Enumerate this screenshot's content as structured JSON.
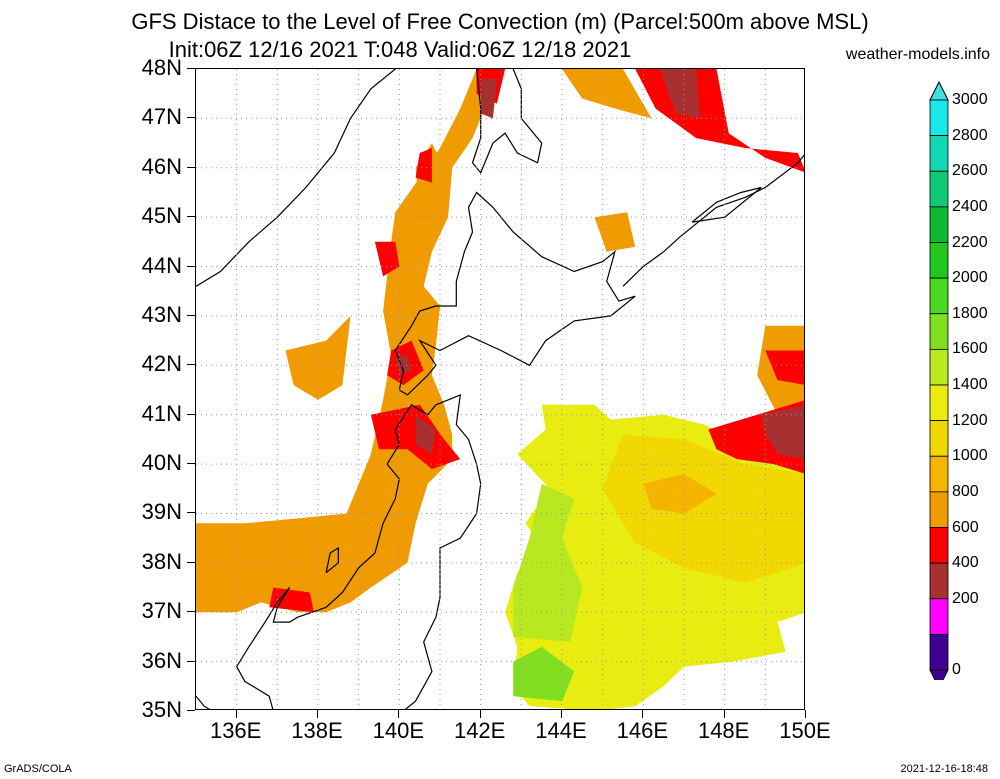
{
  "title": {
    "line1": "GFS Distace to the Level of Free Convection (m) (Parcel:500m above MSL)",
    "line2": "Init:06Z 12/16 2021 T:048 Valid:06Z 12/18 2021"
  },
  "site_credit": "weather-models.info",
  "footer": {
    "left": "GrADS/COLA",
    "right": "2021-12-16-18:48"
  },
  "map": {
    "lat_labels": [
      "48N",
      "47N",
      "46N",
      "45N",
      "44N",
      "43N",
      "42N",
      "41N",
      "40N",
      "39N",
      "38N",
      "37N",
      "36N",
      "35N"
    ],
    "lon_labels": [
      "136E",
      "138E",
      "140E",
      "142E",
      "144E",
      "146E",
      "148E",
      "150E"
    ],
    "lat_range": [
      35,
      48
    ],
    "lon_range": [
      135,
      150
    ],
    "grid_lines": "dotted"
  },
  "colorbar": {
    "levels": [
      "3000",
      "2800",
      "2600",
      "2400",
      "2200",
      "2000",
      "1800",
      "1600",
      "1400",
      "1200",
      "1000",
      "800",
      "600",
      "400",
      "200",
      "0"
    ],
    "colors": [
      "#18e8e8",
      "#10d8b0",
      "#10c878",
      "#10b830",
      "#20c820",
      "#48d820",
      "#80e020",
      "#b8e820",
      "#e8ec10",
      "#f0d800",
      "#f4b400",
      "#f09c00",
      "#ff0000",
      "#a83030",
      "#ff00ff",
      "#400090"
    ],
    "top_arrow_color": "#40e0e0",
    "bottom_arrow_color": "#400090"
  },
  "legend_colors": {
    "lt200": "#ff00ff",
    "200_400": "#a83030",
    "400_600": "#ff0000",
    "600_800": "#f09c00",
    "800_1000": "#f4b400",
    "1000_1200": "#f0d800",
    "1200_1400": "#e8ec10",
    "1400_1600": "#b8e820",
    "1600_1800": "#80e020"
  }
}
